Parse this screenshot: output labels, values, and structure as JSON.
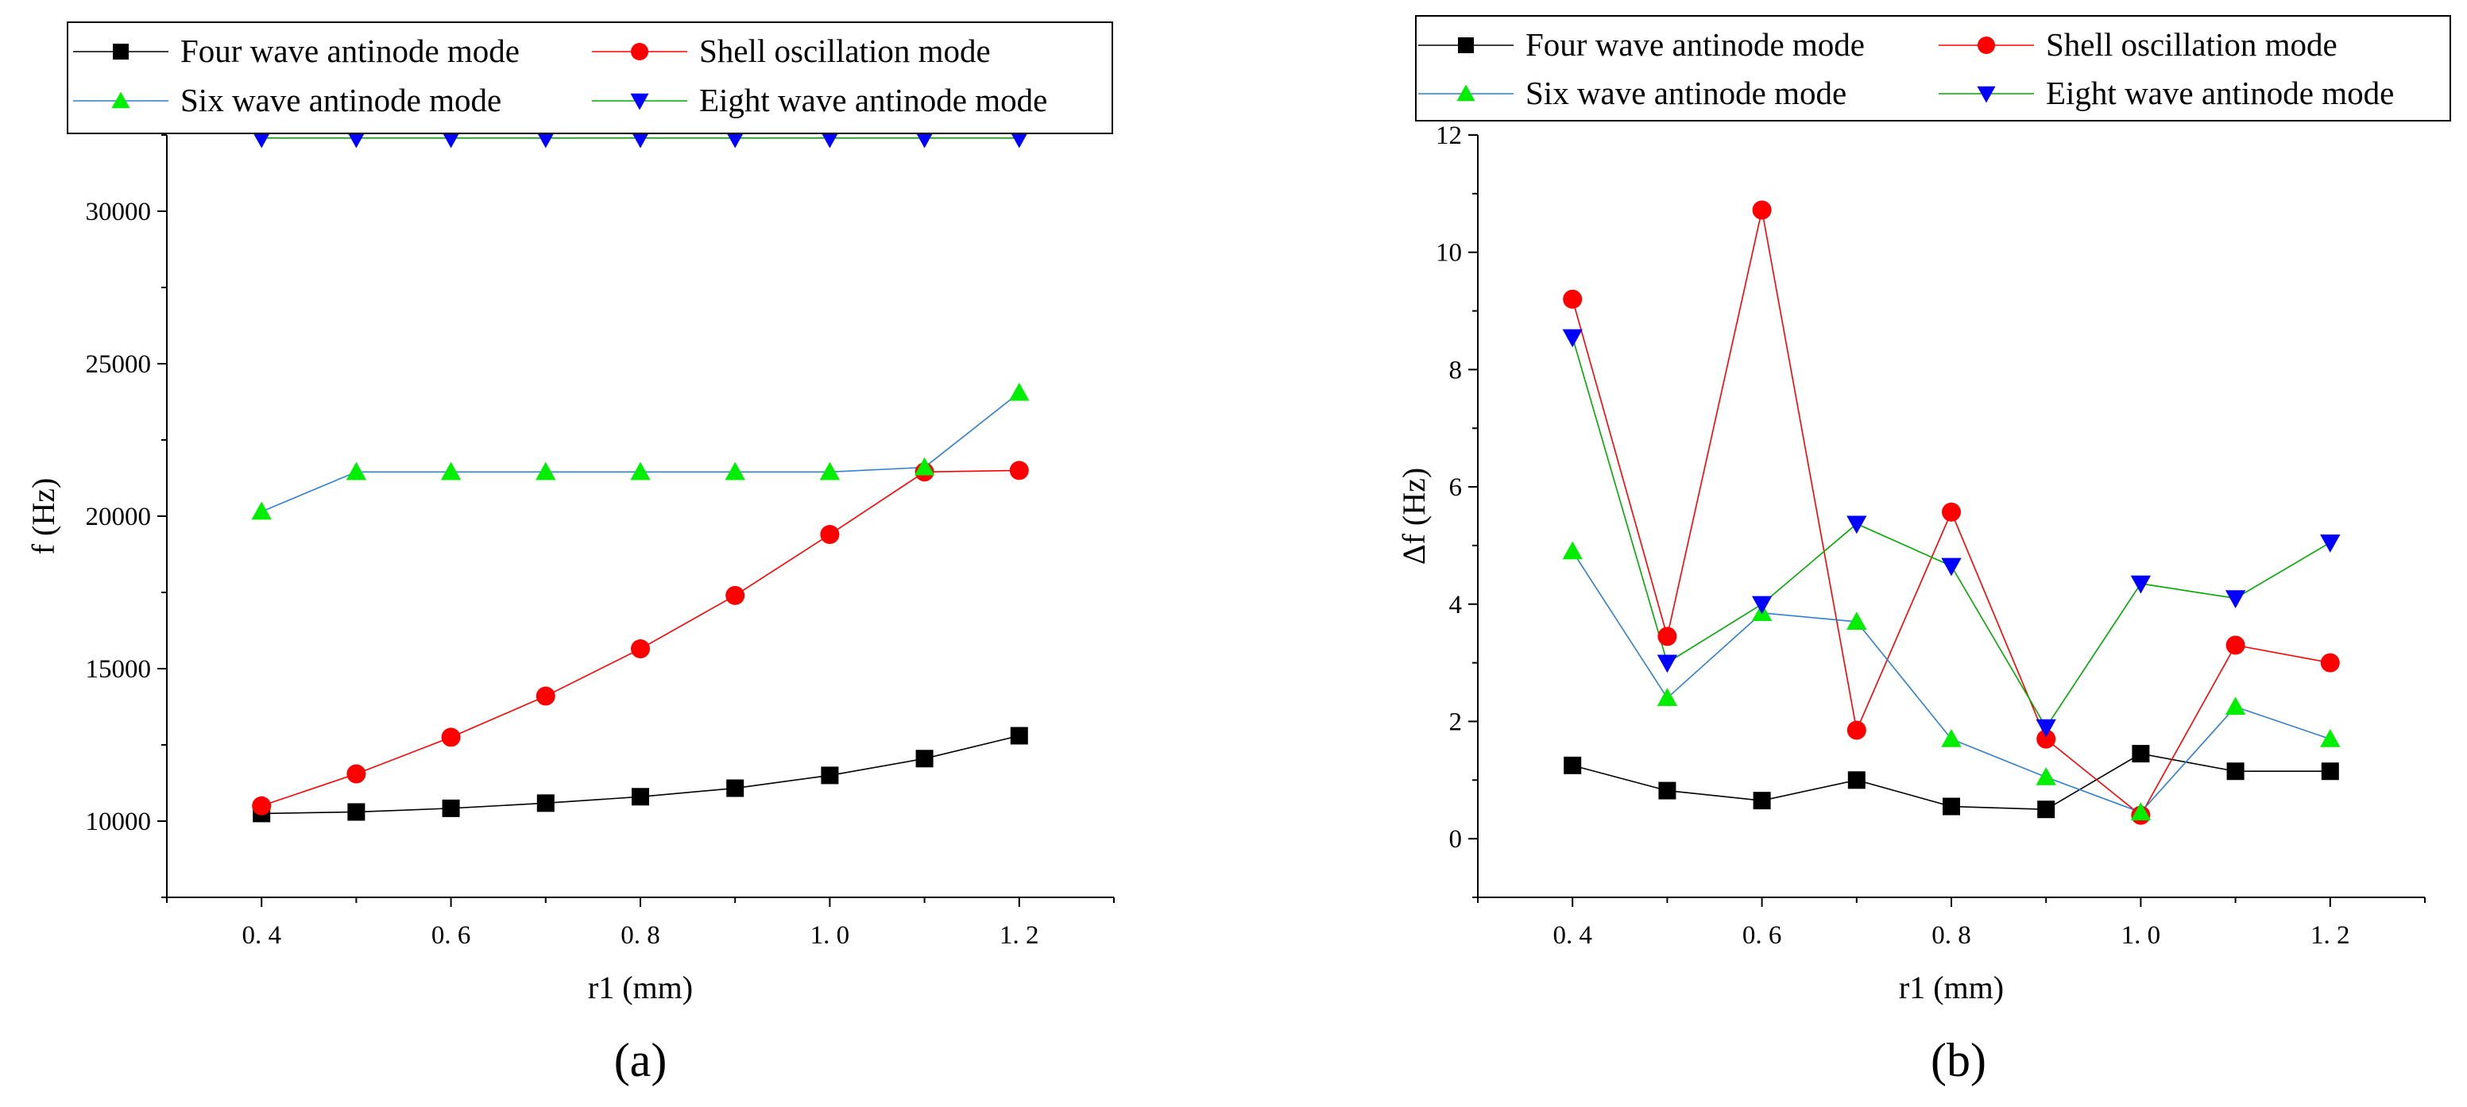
{
  "chart_data": [
    {
      "type": "line",
      "caption": "(a)",
      "xlabel": "r1 (mm)",
      "ylabel": "f (Hz)",
      "title": "",
      "x": [
        0.4,
        0.5,
        0.6,
        0.7,
        0.8,
        0.9,
        1.0,
        1.1,
        1.2
      ],
      "xlim": [
        0.3,
        1.3
      ],
      "ylim": [
        7500,
        32500
      ],
      "xticks": [
        0.4,
        0.6,
        0.8,
        1.0,
        1.2
      ],
      "xtick_labels": [
        "0. 4",
        "0. 6",
        "0. 8",
        "1. 0",
        "1. 2"
      ],
      "yticks": [
        10000,
        15000,
        20000,
        25000,
        30000
      ],
      "ytick_labels": [
        "10000",
        "15000",
        "20000",
        "25000",
        "30000"
      ],
      "legend_position": "top-left",
      "series": [
        {
          "name": "Four wave antinode mode",
          "marker": "square",
          "marker_color": "#000000",
          "line_color": "#000000",
          "values": [
            10250,
            10300,
            10420,
            10590,
            10800,
            11080,
            11500,
            12050,
            12800
          ]
        },
        {
          "name": "Shell oscillation mode",
          "marker": "circle",
          "marker_color": "#ff0000",
          "line_color": "#ff0000",
          "values": [
            10500,
            11550,
            12750,
            14100,
            15650,
            17400,
            19400,
            21450,
            21500
          ]
        },
        {
          "name": "Six wave antinode mode",
          "marker": "triangle-up",
          "marker_color": "#00ee00",
          "line_color": "#2f7fd1",
          "values": [
            20150,
            21450,
            21450,
            21450,
            21450,
            21450,
            21450,
            21600,
            24050
          ]
        },
        {
          "name": "Eight wave antinode mode",
          "marker": "triangle-down",
          "marker_color": "#0000ff",
          "line_color": "#00aa00",
          "values": [
            32400,
            32400,
            32400,
            32400,
            32400,
            32400,
            32400,
            32400,
            32400
          ]
        }
      ]
    },
    {
      "type": "line",
      "caption": "(b)",
      "xlabel": "r1 (mm)",
      "ylabel": "Δf (Hz)",
      "title": "",
      "x": [
        0.4,
        0.5,
        0.6,
        0.7,
        0.8,
        0.9,
        1.0,
        1.1,
        1.2
      ],
      "xlim": [
        0.3,
        1.3
      ],
      "ylim": [
        -1,
        12
      ],
      "xticks": [
        0.4,
        0.6,
        0.8,
        1.0,
        1.2
      ],
      "xtick_labels": [
        "0. 4",
        "0. 6",
        "0. 8",
        "1. 0",
        "1. 2"
      ],
      "yticks": [
        0,
        2,
        4,
        6,
        8,
        10,
        12
      ],
      "ytick_labels": [
        "0",
        "2",
        "4",
        "6",
        "8",
        "10",
        "12"
      ],
      "legend_position": "top",
      "series": [
        {
          "name": "Four wave antinode mode",
          "marker": "square",
          "marker_color": "#000000",
          "line_color": "#000000",
          "values": [
            1.25,
            0.82,
            0.65,
            1.0,
            0.55,
            0.5,
            1.45,
            1.15,
            1.15
          ]
        },
        {
          "name": "Shell oscillation mode",
          "marker": "circle",
          "marker_color": "#ff0000",
          "line_color": "#ff0000",
          "values": [
            9.2,
            3.45,
            10.72,
            1.85,
            5.57,
            1.7,
            0.4,
            3.3,
            3.0
          ]
        },
        {
          "name": "Six wave antinode mode",
          "marker": "triangle-up",
          "marker_color": "#00ee00",
          "line_color": "#2f7fd1",
          "values": [
            4.9,
            2.4,
            3.85,
            3.7,
            1.7,
            1.05,
            0.45,
            2.25,
            1.7
          ]
        },
        {
          "name": "Eight wave antinode mode",
          "marker": "triangle-down",
          "marker_color": "#0000ff",
          "line_color": "#00aa00",
          "values": [
            8.55,
            3.0,
            4.0,
            5.37,
            4.65,
            1.9,
            4.35,
            4.1,
            5.05
          ]
        }
      ]
    }
  ]
}
